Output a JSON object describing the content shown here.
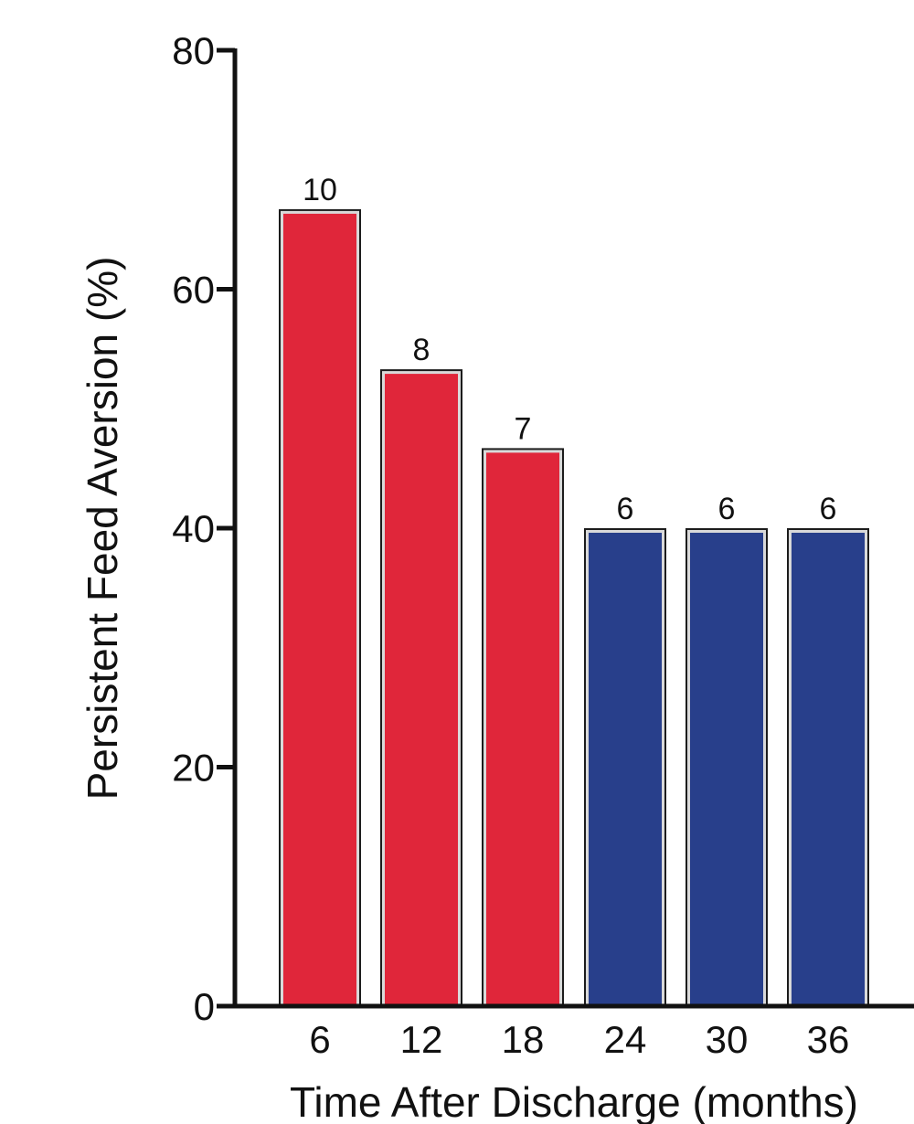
{
  "chart_data": {
    "type": "bar",
    "title": "",
    "xlabel": "Time After Discharge (months)",
    "ylabel": "Persistent Feed Aversion (%)",
    "categories": [
      "6",
      "12",
      "18",
      "24",
      "30",
      "36"
    ],
    "values": [
      66.7,
      53.3,
      46.7,
      40,
      40,
      40
    ],
    "data_labels": [
      "10",
      "8",
      "7",
      "6",
      "6",
      "6"
    ],
    "bar_colors": [
      "#e0263a",
      "#e0263a",
      "#e0263a",
      "#283f8b",
      "#283f8b",
      "#283f8b"
    ],
    "ylim": [
      0,
      80
    ],
    "yticks": [
      0,
      20,
      40,
      60,
      80
    ],
    "grid": false,
    "legend": "none"
  }
}
